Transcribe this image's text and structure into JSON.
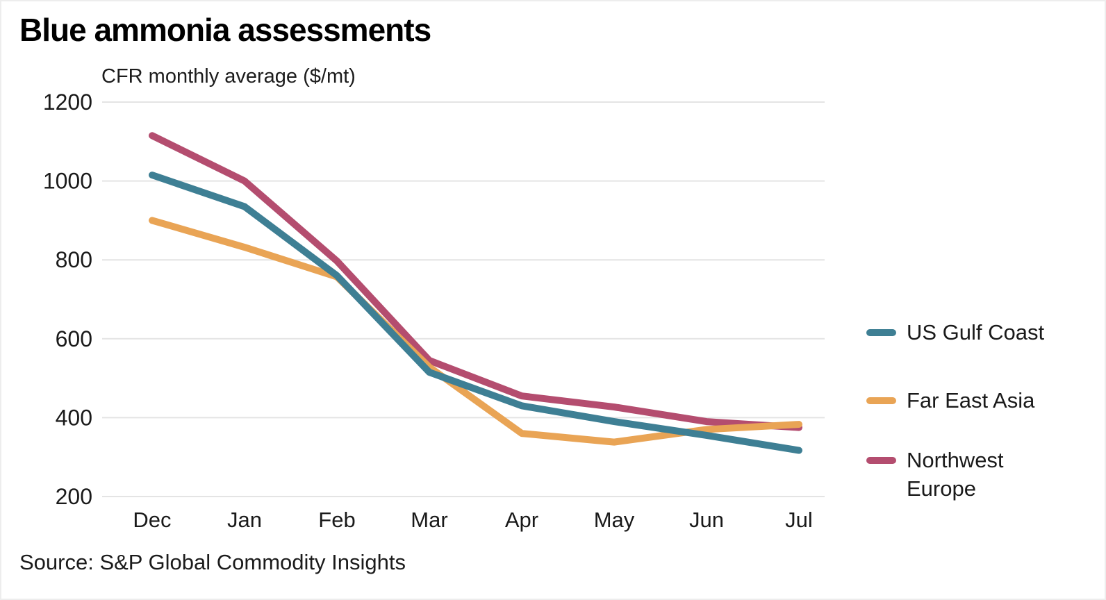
{
  "page": {
    "source": "Source: S&P Global Commodity Insights"
  },
  "chart_data": {
    "type": "line",
    "title": "Blue ammonia assessments",
    "subtitle": "CFR monthly average ($/mt)",
    "categories": [
      "Dec",
      "Jan",
      "Feb",
      "Mar",
      "Apr",
      "May",
      "Jun",
      "Jul"
    ],
    "series": [
      {
        "name": "US Gulf Coast",
        "color": "#3e7f94",
        "values": [
          1015,
          935,
          760,
          515,
          430,
          390,
          355,
          317
        ]
      },
      {
        "name": "Far East Asia",
        "color": "#e9a455",
        "values": [
          900,
          832,
          757,
          528,
          360,
          338,
          370,
          383
        ]
      },
      {
        "name": "Northwest Europe",
        "color": "#b44d6f",
        "values": [
          1115,
          1000,
          797,
          545,
          455,
          427,
          390,
          375
        ]
      }
    ],
    "ylim": [
      200,
      1200
    ],
    "ytick_step": 200,
    "yticks": [
      200,
      400,
      600,
      800,
      1000,
      1200
    ],
    "grid": "horizontal",
    "grid_color": "#e4e4e4",
    "axis_text_color": "#1a1a1a",
    "legend_position": "right",
    "line_width": 10
  }
}
